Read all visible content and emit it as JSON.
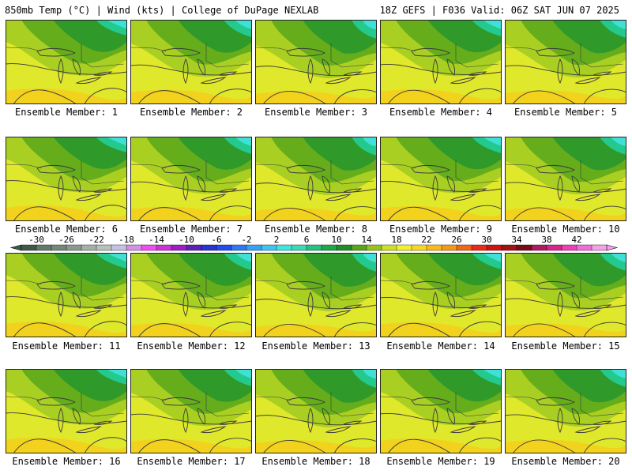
{
  "header": {
    "left_title": "850mb Temp (°C) | Wind (kts) | College of DuPage NEXLAB",
    "right_title": "18Z GEFS | F036 Valid: 06Z SAT JUN 07 2025"
  },
  "panels": [
    {
      "label": "Ensemble Member: 1"
    },
    {
      "label": "Ensemble Member: 2"
    },
    {
      "label": "Ensemble Member: 3"
    },
    {
      "label": "Ensemble Member: 4"
    },
    {
      "label": "Ensemble Member: 5"
    },
    {
      "label": "Ensemble Member: 6"
    },
    {
      "label": "Ensemble Member: 7"
    },
    {
      "label": "Ensemble Member: 8"
    },
    {
      "label": "Ensemble Member: 9"
    },
    {
      "label": "Ensemble Member: 10"
    },
    {
      "label": "Ensemble Member: 11"
    },
    {
      "label": "Ensemble Member: 12"
    },
    {
      "label": "Ensemble Member: 13"
    },
    {
      "label": "Ensemble Member: 14"
    },
    {
      "label": "Ensemble Member: 15"
    },
    {
      "label": "Ensemble Member: 16"
    },
    {
      "label": "Ensemble Member: 17"
    },
    {
      "label": "Ensemble Member: 18"
    },
    {
      "label": "Ensemble Member: 19"
    },
    {
      "label": "Ensemble Member: 20"
    }
  ],
  "colorbar": {
    "labels": [
      "-30",
      "-26",
      "-22",
      "-18",
      "-14",
      "-10",
      "-6",
      "-2",
      "2",
      "6",
      "10",
      "14",
      "18",
      "22",
      "26",
      "30",
      "34",
      "38",
      "42"
    ],
    "colors": [
      "#3d5a46",
      "#607a68",
      "#73877a",
      "#8a9a8f",
      "#a4b0a8",
      "#b7c2ba",
      "#c5c2e8",
      "#d58fe6",
      "#ee4df0",
      "#cc33d6",
      "#9a1fc9",
      "#5a22b8",
      "#2a33d3",
      "#1f4df2",
      "#2f78f5",
      "#39a1f3",
      "#3ec4ef",
      "#3fe6dd",
      "#3fd8b4",
      "#27c27e",
      "#1ea84a",
      "#1d8f25",
      "#58a61b",
      "#95c41e",
      "#cbe126",
      "#f0f02d",
      "#f7d723",
      "#f8bb1b",
      "#f5981a",
      "#f26617",
      "#eb2a18",
      "#cc1414",
      "#a51010",
      "#7a0b13",
      "#b21a5e",
      "#d8248b",
      "#ef3fb8",
      "#f36bd8",
      "#f5a1e8"
    ]
  },
  "palette": {
    "warm": "#f2d21c",
    "yellow": "#dfe82a",
    "lime": "#a9cf22",
    "green": "#66ad1c",
    "dark_green": "#2f9a2a",
    "teal": "#24c98d",
    "cyan": "#3fe0d6",
    "border": "#222222",
    "line": "#3a3a3a"
  }
}
